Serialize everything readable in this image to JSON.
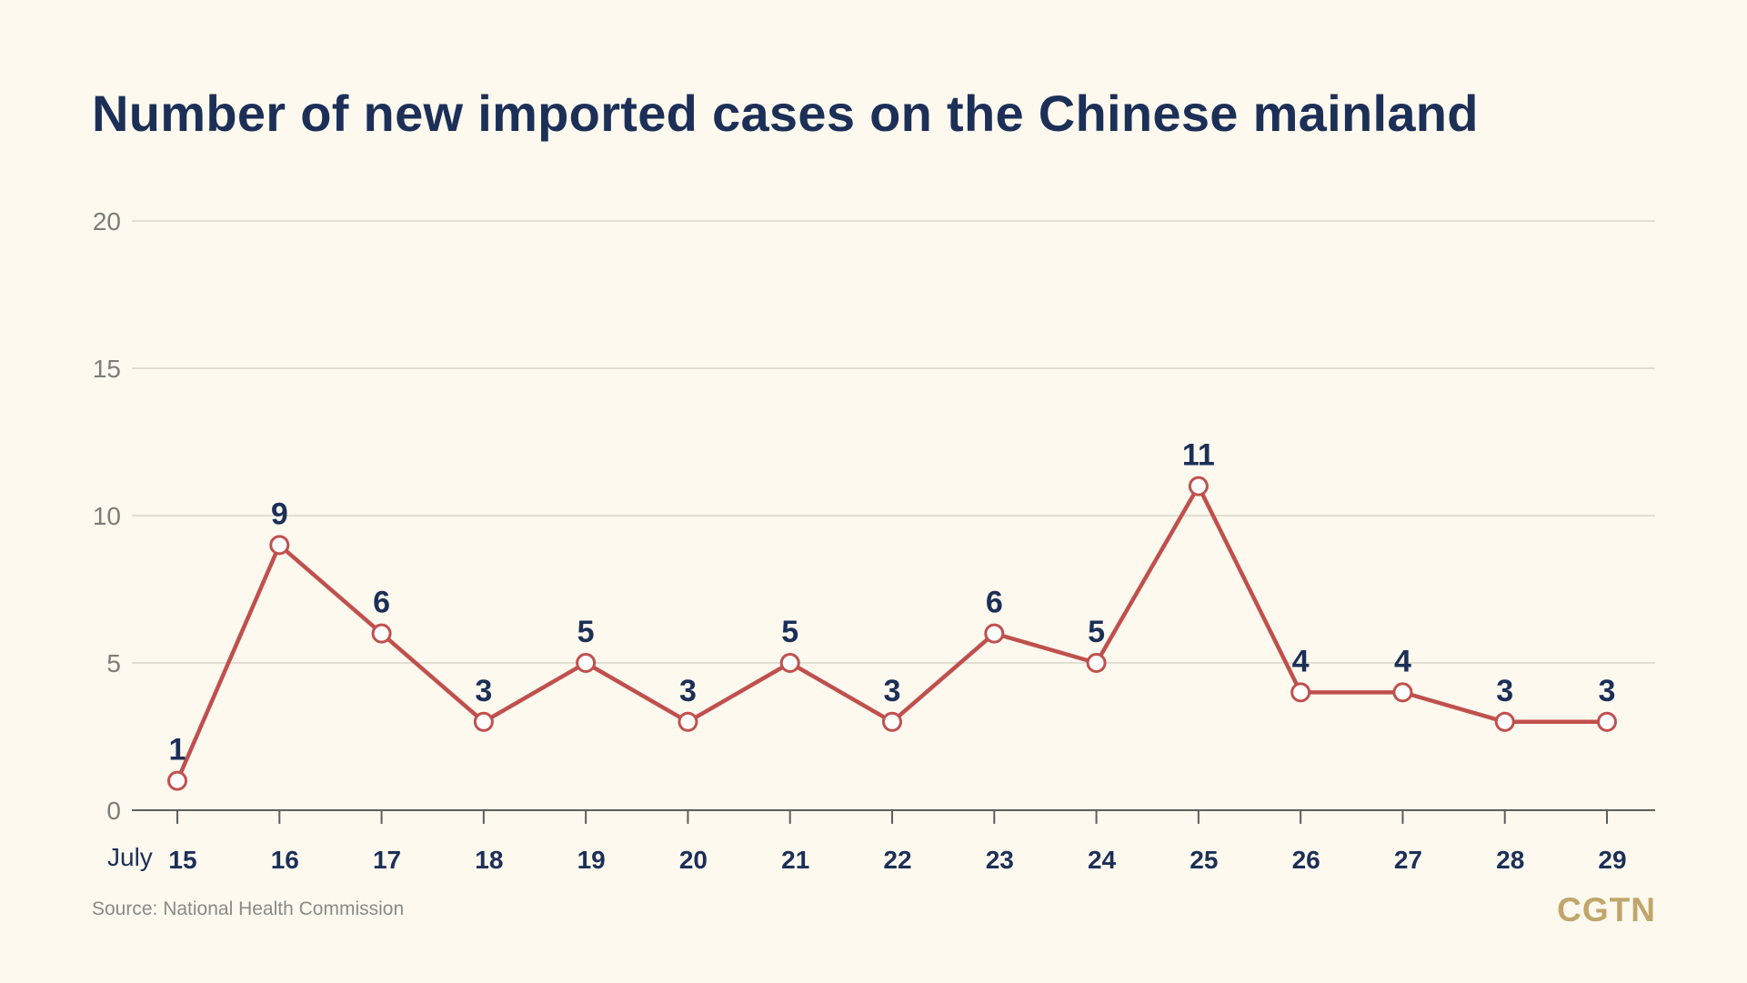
{
  "title": "Number of new imported cases on the Chinese mainland",
  "source": "Source: National Health Commission",
  "logo": "CGTN",
  "colors": {
    "background": "#fdf9ef",
    "title": "#1c2f57",
    "line": "#c0504d",
    "grid": "#d8d5c8",
    "logo": "#c0a66b"
  },
  "chart_data": {
    "type": "line",
    "title": "Number of new imported cases on the Chinese mainland",
    "xlabel": "",
    "ylabel": "",
    "x_prefix": "July",
    "categories": [
      "15",
      "16",
      "17",
      "18",
      "19",
      "20",
      "21",
      "22",
      "23",
      "24",
      "25",
      "26",
      "27",
      "28",
      "29"
    ],
    "series": [
      {
        "values": [
          1,
          9,
          6,
          3,
          5,
          3,
          5,
          3,
          6,
          5,
          11,
          4,
          4,
          3,
          3
        ]
      }
    ],
    "ylim": [
      0,
      20
    ],
    "yticks": [
      0,
      5,
      10,
      15,
      20
    ],
    "grid": true,
    "legend": "none",
    "data_labels": true
  }
}
